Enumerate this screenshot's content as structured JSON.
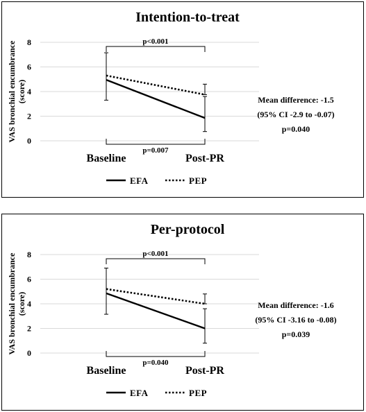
{
  "chart_data": [
    {
      "type": "line",
      "title": "Intention-to-treat",
      "ylabel": "VAS bronchial encumbrance (score)",
      "ylim": [
        0,
        8
      ],
      "yticks": [
        "0",
        "2",
        "4",
        "6",
        "8"
      ],
      "grid": true,
      "categories": [
        "Baseline",
        "Post-PR"
      ],
      "series": [
        {
          "name": "EFA",
          "values": [
            4.95,
            1.85
          ],
          "err_upper": [
            7.15,
            3.6
          ],
          "err_lower": [
            3.3,
            0.75
          ],
          "style": "solid",
          "color": "#000000"
        },
        {
          "name": "PEP",
          "values": [
            5.3,
            3.75
          ],
          "err_upper": [
            5.3,
            4.6
          ],
          "err_lower": [
            5.3,
            3.75
          ],
          "style": "dotted",
          "color": "#000000"
        }
      ],
      "brackets": [
        {
          "label": "p<0.001",
          "position": "top"
        },
        {
          "label": "p=0.007",
          "position": "bottom"
        }
      ],
      "annotation": [
        "Mean difference: -1.5",
        "(95% CI -2.9 to -0.07)",
        "p=0.040"
      ],
      "legend_position": "bottom"
    },
    {
      "type": "line",
      "title": "Per-protocol",
      "ylabel": "VAS bronchial encumbrance (score)",
      "ylim": [
        0,
        8
      ],
      "yticks": [
        "0",
        "2",
        "4",
        "6",
        "8"
      ],
      "grid": true,
      "categories": [
        "Baseline",
        "Post-PR"
      ],
      "series": [
        {
          "name": "EFA",
          "values": [
            4.85,
            2.0
          ],
          "err_upper": [
            6.9,
            3.6
          ],
          "err_lower": [
            3.15,
            0.8
          ],
          "style": "solid",
          "color": "#000000"
        },
        {
          "name": "PEP",
          "values": [
            5.2,
            4.0
          ],
          "err_upper": [
            5.2,
            4.8
          ],
          "err_lower": [
            5.2,
            4.0
          ],
          "style": "dotted",
          "color": "#000000"
        }
      ],
      "brackets": [
        {
          "label": "p<0.001",
          "position": "top"
        },
        {
          "label": "p=0.040",
          "position": "bottom"
        }
      ],
      "annotation": [
        "Mean difference: -1.6",
        "(95% CI -3.16 to -0.08)",
        "p=0.039"
      ],
      "legend_position": "bottom"
    }
  ]
}
